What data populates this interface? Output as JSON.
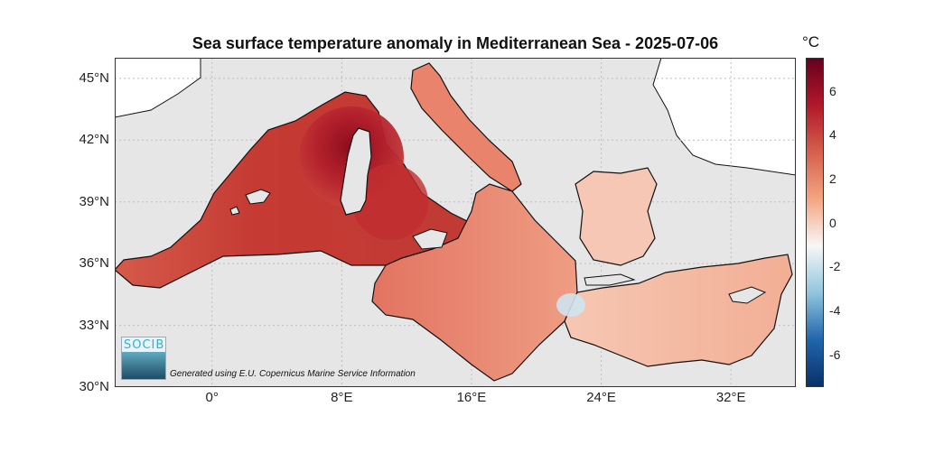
{
  "title": "Sea surface temperature anomaly in Mediterranean Sea - 2025-07-06",
  "map": {
    "lon_range": [
      -6,
      36
    ],
    "lat_range": [
      30,
      46
    ],
    "lat_ticks": [
      {
        "value": 45,
        "label": "45°N"
      },
      {
        "value": 42,
        "label": "42°N"
      },
      {
        "value": 39,
        "label": "39°N"
      },
      {
        "value": 36,
        "label": "36°N"
      },
      {
        "value": 33,
        "label": "33°N"
      },
      {
        "value": 30,
        "label": "30°N"
      }
    ],
    "lon_ticks": [
      {
        "value": 0,
        "label": "0°"
      },
      {
        "value": 8,
        "label": "8°E"
      },
      {
        "value": 16,
        "label": "16°E"
      },
      {
        "value": 24,
        "label": "24°E"
      },
      {
        "value": 32,
        "label": "32°E"
      }
    ],
    "grid": true,
    "land_color": "#e6e6e6",
    "other_land_color": "#ffffff"
  },
  "colorbar": {
    "unit": "°C",
    "range": [
      -7.5,
      7.5
    ],
    "ticks": [
      {
        "value": 6,
        "label": "6"
      },
      {
        "value": 4,
        "label": "4"
      },
      {
        "value": 2,
        "label": "2"
      },
      {
        "value": 0,
        "label": "0"
      },
      {
        "value": -2,
        "label": "-2"
      },
      {
        "value": -4,
        "label": "-4"
      },
      {
        "value": -6,
        "label": "-6"
      }
    ],
    "colors": [
      "#08306b",
      "#2166ac",
      "#92c5de",
      "#f7f7f7",
      "#f4a582",
      "#d6604d",
      "#b2182b",
      "#67001f"
    ]
  },
  "logo": {
    "text": "SOCIB"
  },
  "credit": "Generated using E.U. Copernicus Marine Service Information"
}
